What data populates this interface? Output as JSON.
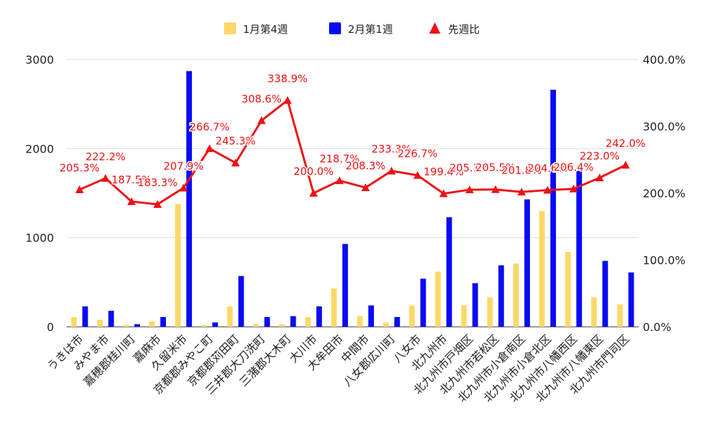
{
  "chart_data": {
    "type": "bar",
    "categories": [
      "うきは市",
      "みやま市",
      "嘉穂郡桂川町",
      "嘉麻市",
      "久留米市",
      "京都郡みやこ町",
      "京都郡苅田町",
      "三井郡大刀洗町",
      "三潴郡大木町",
      "大川市",
      "大牟田市",
      "中間市",
      "八女郡広川町",
      "八女市",
      "北九州市",
      "北九州市戸畑区",
      "北九州市若松区",
      "北九州市小倉南区",
      "北九州市小倉北区",
      "北九州市八幡西区",
      "北九州市八幡東区",
      "北九州市門司区"
    ],
    "series": [
      {
        "name": "1月第4週",
        "kind": "bar",
        "axis": "left",
        "color": "#fdd868",
        "values": [
          110,
          80,
          20,
          60,
          1380,
          20,
          230,
          30,
          30,
          110,
          430,
          120,
          45,
          240,
          620,
          240,
          330,
          710,
          1300,
          840,
          330,
          250
        ]
      },
      {
        "name": "2月第1週",
        "kind": "bar",
        "axis": "left",
        "color": "#0a0af4",
        "values": [
          230,
          180,
          30,
          110,
          2870,
          50,
          570,
          110,
          120,
          230,
          930,
          240,
          110,
          540,
          1230,
          490,
          690,
          1430,
          2660,
          1750,
          740,
          610
        ]
      },
      {
        "name": "先週比",
        "kind": "line",
        "axis": "right",
        "color": "#ee1111",
        "marker": "triangle",
        "values": [
          205.3,
          222.2,
          187.5,
          183.3,
          207.9,
          266.7,
          245.3,
          308.6,
          338.9,
          200.0,
          218.7,
          208.3,
          233.3,
          226.7,
          199.4,
          205.1,
          205.5,
          201.8,
          204.6,
          206.4,
          223.0,
          242.0
        ],
        "labels": [
          "205.3%",
          "222.2%",
          "187.5%",
          "183.3%",
          "207.9%",
          "266.7%",
          "245.3%",
          "308.6%",
          "338.9%",
          "200.0%",
          "218.7%",
          "208.3%",
          "233.3%",
          "226.7%",
          "199.4%",
          "205.1%",
          "205.5%",
          "201.8%",
          "204.6%",
          "206.4%",
          "223.0%",
          "242.0%"
        ]
      }
    ],
    "y_left": {
      "min": 0,
      "max": 3000,
      "ticks": [
        "0",
        "1000",
        "2000",
        "3000"
      ]
    },
    "y_right": {
      "min": 0,
      "max": 400,
      "ticks": [
        "0.0%",
        "100.0%",
        "200.0%",
        "300.0%",
        "400.0%"
      ]
    },
    "title": "",
    "xlabel": "",
    "ylabel": "",
    "grid": true,
    "legend": "top-center"
  }
}
